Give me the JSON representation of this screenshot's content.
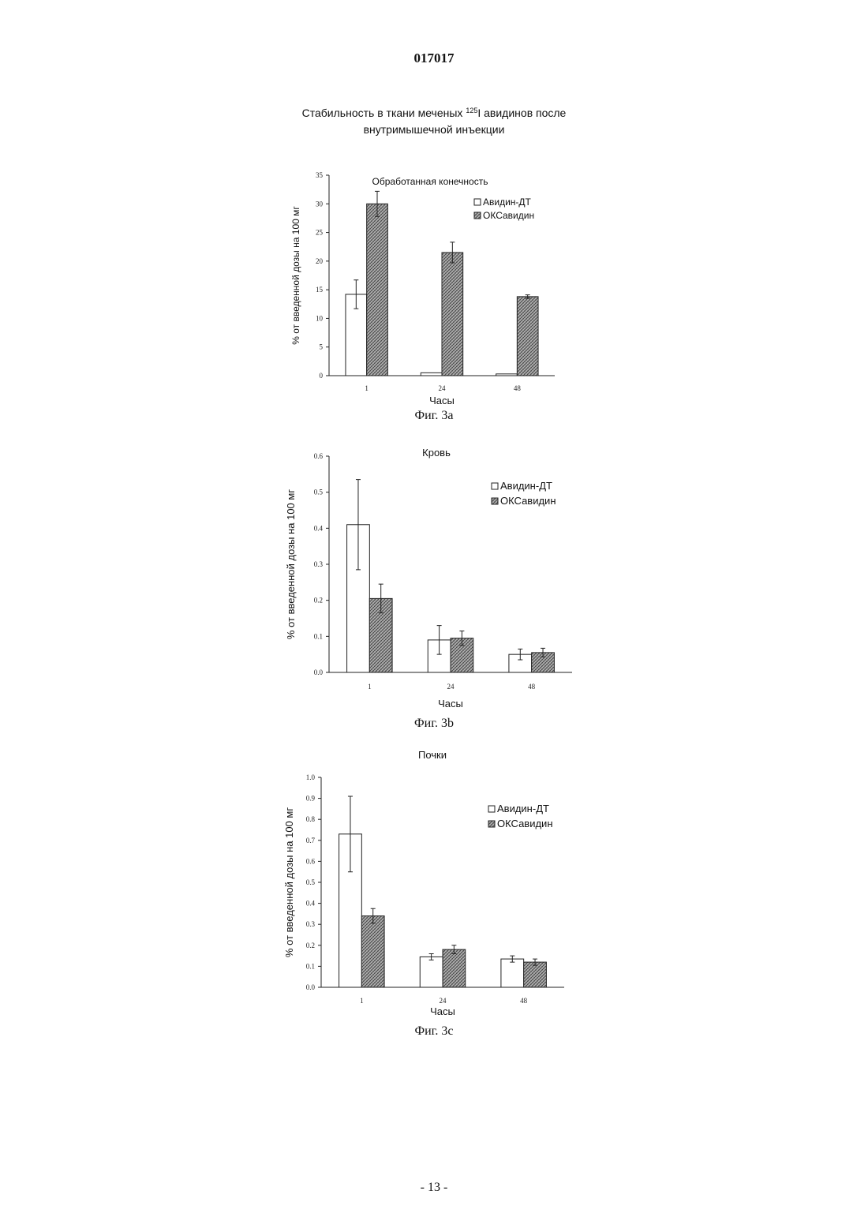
{
  "document_number": "017017",
  "main_title": {
    "line1_before": "Стабильность в ткани меченых ",
    "isotope": "125",
    "line1_after": "I авидинов после",
    "line2": "внутримышечной инъекции"
  },
  "colors": {
    "avidin_dt": "#ffffff",
    "oks_avidin": "#9a9a9a",
    "axis": "#222222"
  },
  "chart_data": [
    {
      "type": "bar",
      "title": "Обработанная конечность",
      "xlabel": "Часы",
      "ylabel": "% от введенной дозы на 100 мг",
      "categories": [
        "1",
        "24",
        "48"
      ],
      "ylim": [
        0,
        35
      ],
      "yticks": [
        "0",
        "5",
        "10",
        "15",
        "20",
        "25",
        "30",
        "35"
      ],
      "legend_position": "top-right",
      "series": [
        {
          "name": "Авидин-ДТ",
          "pattern": "open",
          "values": [
            14.2,
            0.5,
            0.3
          ],
          "errors": [
            2.5,
            0,
            0
          ]
        },
        {
          "name": "ОКСавидин",
          "pattern": "hatched",
          "values": [
            30.0,
            21.5,
            13.8
          ],
          "errors": [
            2.2,
            1.8,
            0.3
          ]
        }
      ],
      "caption": "Фиг. 3a"
    },
    {
      "type": "bar",
      "title": "Кровь",
      "xlabel": "Часы",
      "ylabel": "% от введенной дозы на 100 мг",
      "categories": [
        "1",
        "24",
        "48"
      ],
      "ylim": [
        0,
        0.6
      ],
      "yticks": [
        "0.0",
        "0.1",
        "0.2",
        "0.3",
        "0.4",
        "0.5",
        "0.6"
      ],
      "legend_position": "top-right",
      "series": [
        {
          "name": "Авидин-ДТ",
          "pattern": "open",
          "values": [
            0.41,
            0.09,
            0.05
          ],
          "errors": [
            0.125,
            0.04,
            0.015
          ]
        },
        {
          "name": "ОКСавидин",
          "pattern": "hatched",
          "values": [
            0.205,
            0.095,
            0.055
          ],
          "errors": [
            0.04,
            0.02,
            0.012
          ]
        }
      ],
      "caption": "Фиг. 3b"
    },
    {
      "type": "bar",
      "title": "Почки",
      "xlabel": "Часы",
      "ylabel": "% от введенной дозы на 100 мг",
      "categories": [
        "1",
        "24",
        "48"
      ],
      "ylim": [
        0,
        1.0
      ],
      "yticks": [
        "0.0",
        "0.1",
        "0.2",
        "0.3",
        "0.4",
        "0.5",
        "0.6",
        "0.7",
        "0.8",
        "0.9",
        "1.0"
      ],
      "legend_position": "top-right",
      "series": [
        {
          "name": "Авидин-ДТ",
          "pattern": "open",
          "values": [
            0.73,
            0.145,
            0.135
          ],
          "errors": [
            0.18,
            0.015,
            0.015
          ]
        },
        {
          "name": "ОКСавидин",
          "pattern": "hatched",
          "values": [
            0.34,
            0.18,
            0.12
          ],
          "errors": [
            0.035,
            0.02,
            0.015
          ]
        }
      ],
      "caption": "Фиг. 3c"
    }
  ],
  "page_number": "- 13 -"
}
